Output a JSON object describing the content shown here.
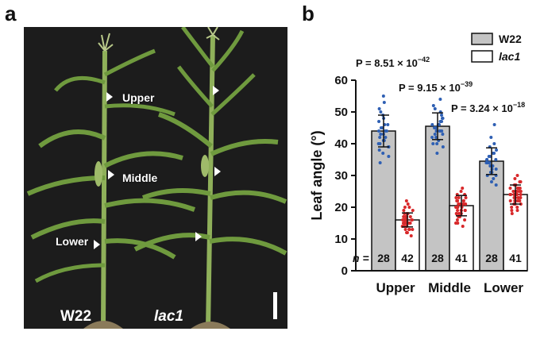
{
  "panel_a": {
    "letter": "a",
    "labels": {
      "upper": "Upper",
      "middle": "Middle",
      "lower": "Lower"
    },
    "genotype_left": "W22",
    "genotype_right": "lac1",
    "colors": {
      "background": "#1c1c1c",
      "stem": "#8fb05a",
      "leaf": "#6f9a3e",
      "arrow": "#ffffff"
    }
  },
  "panel_b": {
    "letter": "b",
    "legend": [
      {
        "name": "W22",
        "fill": "#c4c4c4"
      },
      {
        "name": "lac1",
        "fill": "#ffffff"
      }
    ],
    "p_values": [
      {
        "text": "P = 8.51 × 10",
        "exp": "−42"
      },
      {
        "text": "P = 9.15 × 10",
        "exp": "−39"
      },
      {
        "text": "P = 3.24 × 10",
        "exp": "−18"
      }
    ],
    "n_prefix": "n ="
  },
  "chart_data": {
    "type": "bar",
    "categories": [
      "Upper",
      "Middle",
      "Lower"
    ],
    "ylabel": "Leaf angle (°)",
    "ylim": [
      0,
      60
    ],
    "yticks": [
      0,
      10,
      20,
      30,
      40,
      50,
      60
    ],
    "grid": false,
    "legend_position": "top-right",
    "series": [
      {
        "name": "W22",
        "values": [
          44,
          45.5,
          34.5
        ],
        "errors": [
          5,
          4.2,
          4.2
        ],
        "n": [
          28,
          28,
          28
        ],
        "fill": "#c4c4c4",
        "dot_color": "#2e5fb3",
        "points": [
          [
            55,
            53,
            51,
            50,
            49,
            48,
            47,
            46,
            46,
            45,
            45,
            44,
            44,
            44,
            43,
            43,
            42,
            42,
            41,
            41,
            40,
            40,
            39,
            39,
            38,
            37,
            36,
            34
          ],
          [
            54,
            52,
            51,
            50,
            49,
            48,
            48,
            47,
            47,
            46,
            46,
            46,
            45,
            45,
            45,
            44,
            44,
            44,
            43,
            43,
            42,
            42,
            41,
            40,
            40,
            39,
            37,
            44
          ],
          [
            46,
            42,
            40,
            39,
            38,
            37,
            37,
            36,
            36,
            35,
            35,
            35,
            34,
            34,
            34,
            34,
            33,
            33,
            33,
            32,
            32,
            31,
            31,
            30,
            30,
            29,
            28,
            27
          ]
        ]
      },
      {
        "name": "lac1",
        "values": [
          16,
          20.5,
          24
        ],
        "errors": [
          2.2,
          3.2,
          3
        ],
        "n": [
          42,
          41,
          41
        ],
        "fill": "#ffffff",
        "dot_color": "#d8282a",
        "points": [
          [
            22,
            21,
            20,
            20,
            19,
            19,
            18,
            18,
            18,
            17,
            17,
            17,
            17,
            16,
            16,
            16,
            16,
            16,
            16,
            15,
            15,
            15,
            15,
            15,
            15,
            14,
            14,
            14,
            14,
            14,
            13,
            13,
            13,
            13,
            12,
            12,
            12,
            11,
            16,
            17,
            15,
            16
          ],
          [
            26,
            25,
            24,
            24,
            23,
            23,
            23,
            22,
            22,
            22,
            21,
            21,
            21,
            21,
            20,
            20,
            20,
            20,
            20,
            19,
            19,
            19,
            19,
            18,
            18,
            18,
            18,
            17,
            17,
            17,
            16,
            16,
            15,
            15,
            14,
            22,
            21,
            20,
            19,
            18,
            20
          ],
          [
            30,
            29,
            28,
            28,
            27,
            27,
            26,
            26,
            26,
            25,
            25,
            25,
            25,
            24,
            24,
            24,
            24,
            24,
            23,
            23,
            23,
            23,
            22,
            22,
            22,
            22,
            21,
            21,
            21,
            20,
            20,
            19,
            19,
            18,
            27,
            25,
            24,
            23,
            22,
            26,
            24
          ]
        ]
      }
    ]
  }
}
